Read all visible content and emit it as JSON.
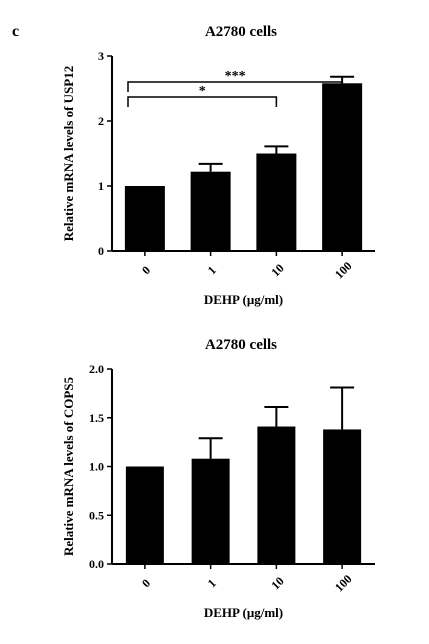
{
  "panel_letter": "c",
  "chart_data": [
    {
      "type": "bar",
      "title": "A2780 cells",
      "xlabel": "DEHP (μg/ml)",
      "ylabel": "Relative mRNA levels of USP12",
      "categories": [
        "0",
        "1",
        "10",
        "100"
      ],
      "values": [
        1.0,
        1.22,
        1.5,
        2.58
      ],
      "errors": [
        0,
        0.12,
        0.11,
        0.1
      ],
      "ylim": [
        0,
        3
      ],
      "yticks": [
        "0",
        "1",
        "2",
        "3"
      ],
      "bar_color": "#000000",
      "grid": false,
      "annotations": [
        {
          "from": "0",
          "to": "100",
          "label": "***"
        },
        {
          "from": "0",
          "to": "10",
          "label": "*"
        }
      ]
    },
    {
      "type": "bar",
      "title": "A2780 cells",
      "xlabel": "DEHP (μg/ml)",
      "ylabel": "Relative mRNA levels of COPS5",
      "categories": [
        "0",
        "1",
        "10",
        "100"
      ],
      "values": [
        1.0,
        1.08,
        1.41,
        1.38
      ],
      "errors": [
        0,
        0.21,
        0.2,
        0.43
      ],
      "ylim": [
        0,
        2.0
      ],
      "yticks": [
        "0.0",
        "0.5",
        "1.0",
        "1.5",
        "2.0"
      ],
      "bar_color": "#000000",
      "grid": false
    }
  ]
}
